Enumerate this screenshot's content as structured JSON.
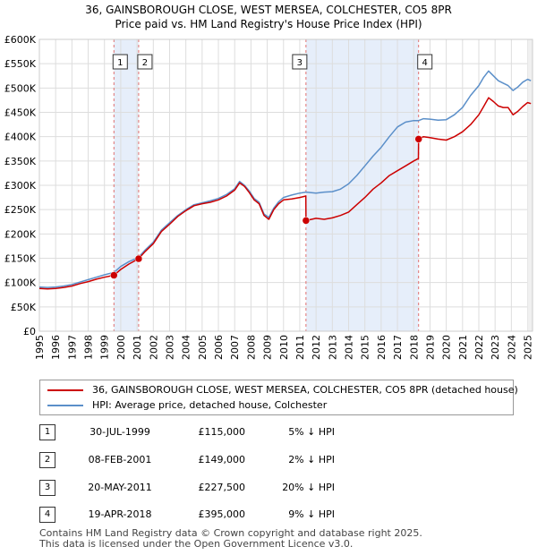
{
  "title_line1": "36, GAINSBOROUGH CLOSE, WEST MERSEA, COLCHESTER, CO5 8PR",
  "title_line2": "Price paid vs. HM Land Registry's House Price Index (HPI)",
  "colors": {
    "property": "#cc0000",
    "hpi": "#5b8fc9",
    "shade": "#e6eefa",
    "grid": "#dddddd",
    "vline": "#e07070"
  },
  "chart_data": {
    "type": "line",
    "xlim": [
      1995,
      2025.3
    ],
    "ylim": [
      0,
      600000
    ],
    "x_ticks": [
      1995,
      1996,
      1997,
      1998,
      1999,
      2000,
      2001,
      2002,
      2003,
      2004,
      2005,
      2006,
      2007,
      2008,
      2009,
      2010,
      2011,
      2012,
      2013,
      2014,
      2015,
      2016,
      2017,
      2018,
      2019,
      2020,
      2021,
      2022,
      2023,
      2024,
      2025
    ],
    "y_ticks": [
      {
        "value": 0,
        "label": "£0"
      },
      {
        "value": 50000,
        "label": "£50K"
      },
      {
        "value": 100000,
        "label": "£100K"
      },
      {
        "value": 150000,
        "label": "£150K"
      },
      {
        "value": 200000,
        "label": "£200K"
      },
      {
        "value": 250000,
        "label": "£250K"
      },
      {
        "value": 300000,
        "label": "£300K"
      },
      {
        "value": 350000,
        "label": "£350K"
      },
      {
        "value": 400000,
        "label": "£400K"
      },
      {
        "value": 450000,
        "label": "£450K"
      },
      {
        "value": 500000,
        "label": "£500K"
      },
      {
        "value": 550000,
        "label": "£550K"
      },
      {
        "value": 600000,
        "label": "£600K"
      }
    ],
    "shaded_ranges": [
      [
        1999.58,
        2001.1
      ],
      [
        2011.38,
        2018.3
      ]
    ],
    "series": [
      {
        "name": "36, GAINSBOROUGH CLOSE, WEST MERSEA, COLCHESTER, CO5 8PR (detached house)",
        "x": [
          1995,
          1995.5,
          1996,
          1996.5,
          1997,
          1997.5,
          1998,
          1998.5,
          1999,
          1999.58,
          2000,
          2000.5,
          2001.1,
          2001.5,
          2002,
          2002.5,
          2003,
          2003.5,
          2004,
          2004.5,
          2005,
          2005.5,
          2006,
          2006.5,
          2007,
          2007.3,
          2007.6,
          2007.9,
          2008.2,
          2008.5,
          2008.8,
          2009.1,
          2009.4,
          2009.7,
          2010,
          2010.5,
          2011,
          2011.37,
          2011.38,
          2012,
          2012.5,
          2013,
          2013.5,
          2014,
          2014.5,
          2015,
          2015.5,
          2016,
          2016.5,
          2017,
          2017.5,
          2018,
          2018.29,
          2018.3,
          2018.6,
          2019,
          2019.5,
          2020,
          2020.5,
          2021,
          2021.5,
          2022,
          2022.3,
          2022.6,
          2022.9,
          2023.2,
          2023.5,
          2023.8,
          2024.1,
          2024.4,
          2024.7,
          2025,
          2025.2
        ],
        "y": [
          88000,
          87000,
          88000,
          90000,
          93000,
          98000,
          102000,
          107000,
          111000,
          115000,
          127000,
          138000,
          149000,
          164000,
          180000,
          205000,
          220000,
          236000,
          248000,
          258000,
          262000,
          265000,
          270000,
          278000,
          290000,
          305000,
          298000,
          285000,
          270000,
          262000,
          238000,
          230000,
          250000,
          262000,
          270000,
          272000,
          275000,
          278000,
          227500,
          232000,
          230000,
          233000,
          238000,
          245000,
          260000,
          275000,
          292000,
          305000,
          320000,
          330000,
          340000,
          350000,
          355000,
          395000,
          400000,
          398000,
          395000,
          393000,
          400000,
          410000,
          425000,
          445000,
          462000,
          480000,
          472000,
          463000,
          460000,
          460000,
          445000,
          452000,
          462000,
          470000,
          468000
        ]
      },
      {
        "name": "HPI: Average price, detached house, Colchester",
        "x": [
          1995,
          1995.5,
          1996,
          1996.5,
          1997,
          1997.5,
          1998,
          1998.5,
          1999,
          1999.58,
          2000,
          2000.5,
          2001.1,
          2001.5,
          2002,
          2002.5,
          2003,
          2003.5,
          2004,
          2004.5,
          2005,
          2005.5,
          2006,
          2006.5,
          2007,
          2007.3,
          2007.6,
          2007.9,
          2008.2,
          2008.5,
          2008.8,
          2009.1,
          2009.4,
          2009.7,
          2010,
          2010.5,
          2011,
          2011.38,
          2012,
          2012.5,
          2013,
          2013.5,
          2014,
          2014.5,
          2015,
          2015.5,
          2016,
          2016.5,
          2017,
          2017.5,
          2018,
          2018.3,
          2018.6,
          2019,
          2019.5,
          2020,
          2020.5,
          2021,
          2021.5,
          2022,
          2022.3,
          2022.6,
          2022.9,
          2023.2,
          2023.5,
          2023.8,
          2024.1,
          2024.4,
          2024.7,
          2025,
          2025.2
        ],
        "y": [
          91000,
          90000,
          91000,
          93000,
          96000,
          101000,
          106000,
          111000,
          116000,
          121000,
          133000,
          143000,
          152000,
          167000,
          183000,
          208000,
          223000,
          238000,
          250000,
          260000,
          264000,
          268000,
          273000,
          281000,
          293000,
          308000,
          300000,
          288000,
          273000,
          265000,
          241000,
          234000,
          253000,
          266000,
          275000,
          280000,
          284000,
          286000,
          284000,
          286000,
          287000,
          292000,
          303000,
          320000,
          340000,
          360000,
          378000,
          400000,
          420000,
          430000,
          433000,
          433000,
          437000,
          436000,
          434000,
          435000,
          445000,
          460000,
          485000,
          505000,
          522000,
          535000,
          525000,
          515000,
          510000,
          505000,
          495000,
          502000,
          512000,
          518000,
          515000
        ]
      }
    ],
    "transactions": [
      {
        "num": "1",
        "x": 1999.58,
        "y": 115000
      },
      {
        "num": "2",
        "x": 2001.1,
        "y": 149000
      },
      {
        "num": "3",
        "x": 2011.38,
        "y": 227500
      },
      {
        "num": "4",
        "x": 2018.3,
        "y": 395000
      }
    ]
  },
  "legend": {
    "property_label": "36, GAINSBOROUGH CLOSE, WEST MERSEA, COLCHESTER, CO5 8PR (detached house)",
    "hpi_label": "HPI: Average price, detached house, Colchester"
  },
  "table": [
    {
      "num": "1",
      "date": "30-JUL-1999",
      "price": "£115,000",
      "hpi": "5% ↓ HPI"
    },
    {
      "num": "2",
      "date": "08-FEB-2001",
      "price": "£149,000",
      "hpi": "2% ↓ HPI"
    },
    {
      "num": "3",
      "date": "20-MAY-2011",
      "price": "£227,500",
      "hpi": "20% ↓ HPI"
    },
    {
      "num": "4",
      "date": "19-APR-2018",
      "price": "£395,000",
      "hpi": "9% ↓ HPI"
    }
  ],
  "footer": {
    "line1": "Contains HM Land Registry data © Crown copyright and database right 2025.",
    "line2": "This data is licensed under the Open Government Licence v3.0."
  }
}
